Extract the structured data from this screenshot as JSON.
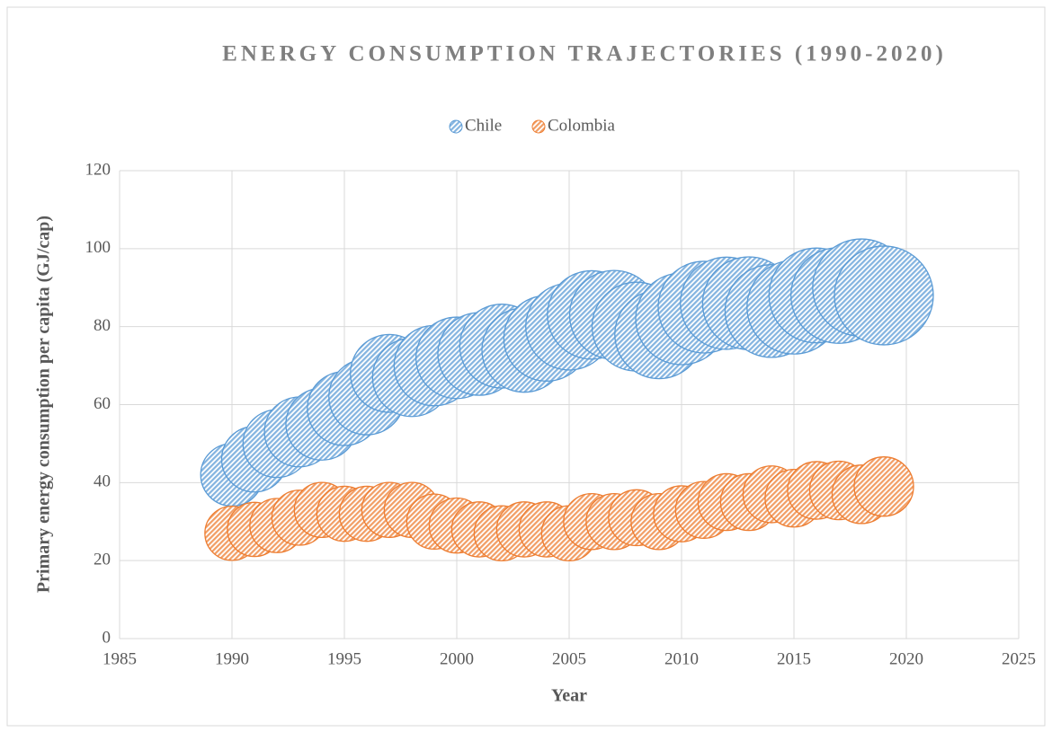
{
  "chart_data": {
    "type": "bubble",
    "title": "ENERGY CONSUMPTION TRAJECTORIES (1990-2020)",
    "x_label": "Year",
    "y_label": "Primary energy consumption per capita (GJ/cap)",
    "x": [
      1990,
      1991,
      1992,
      1993,
      1994,
      1995,
      1996,
      1997,
      1998,
      1999,
      2000,
      2001,
      2002,
      2003,
      2004,
      2005,
      2006,
      2007,
      2008,
      2009,
      2010,
      2011,
      2012,
      2013,
      2014,
      2015,
      2016,
      2017,
      2018,
      2019
    ],
    "series": [
      {
        "name": "Chile",
        "color": "#5b9bd5",
        "values": [
          42,
          46,
          50,
          53,
          55,
          59,
          62,
          68,
          67,
          70,
          72,
          73,
          75,
          74,
          77,
          80,
          83,
          83,
          80,
          78,
          82,
          85,
          86,
          86,
          84,
          85,
          88,
          88,
          90,
          88
        ],
        "sizes": [
          40,
          44,
          47,
          50,
          53,
          56,
          59,
          62,
          63,
          66,
          68,
          70,
          72,
          73,
          75,
          77,
          80,
          81,
          81,
          80,
          86,
          86,
          87,
          88,
          88,
          90,
          92,
          94,
          97,
          100
        ]
      },
      {
        "name": "Colombia",
        "color": "#ed7d31",
        "values": [
          27,
          28,
          29,
          31,
          33,
          32,
          32,
          33,
          33,
          30,
          29,
          28,
          27,
          28,
          28,
          27,
          30,
          30,
          31,
          30,
          32,
          33,
          35,
          35,
          37,
          36,
          38,
          38,
          37,
          39
        ],
        "sizes": [
          30,
          30,
          30,
          31,
          31,
          31,
          31,
          31,
          31,
          31,
          31,
          31,
          31,
          31,
          31,
          31,
          32,
          32,
          32,
          32,
          32,
          33,
          33,
          33,
          33,
          34,
          34,
          35,
          35,
          36
        ]
      }
    ],
    "xlim": [
      1985,
      2025
    ],
    "xticks": [
      1985,
      1990,
      1995,
      2000,
      2005,
      2010,
      2015,
      2020,
      2025
    ],
    "ylim": [
      0,
      120
    ],
    "yticks": [
      0,
      20,
      40,
      60,
      80,
      100,
      120
    ],
    "grid": true,
    "legend": "top"
  }
}
